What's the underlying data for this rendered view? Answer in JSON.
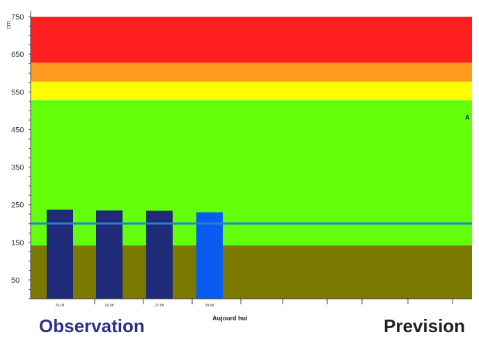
{
  "chart_data": {
    "type": "bar",
    "ylim": [
      0,
      750
    ],
    "yticks": [
      50,
      150,
      250,
      350,
      450,
      550,
      650,
      750
    ],
    "ylabel": "cm",
    "zones": [
      {
        "from": 0,
        "to": 142,
        "color": "#7a7a00"
      },
      {
        "from": 142,
        "to": 528,
        "color": "#63ff0a"
      },
      {
        "from": 528,
        "to": 577,
        "color": "#ffff00"
      },
      {
        "from": 577,
        "to": 628,
        "color": "#ff9a1f"
      },
      {
        "from": 628,
        "to": 750,
        "color": "#ff1f1f"
      }
    ],
    "threshold": {
      "value": 200,
      "color": "#2a7fc9"
    },
    "categories": [
      "25-08",
      "26-08",
      "27-08",
      "28-08"
    ],
    "values": [
      237,
      235,
      234,
      230
    ],
    "bar_colors": [
      "#1f2a78",
      "#1f2a78",
      "#1f2a78",
      "#0a5cf0"
    ],
    "today_label": "Aujourd hui",
    "side_label": "A"
  },
  "captions": {
    "observation": "Observation",
    "prevision": "Prevision"
  },
  "colors": {
    "observation": "#2e2f86",
    "prevision": "#222222",
    "axis": "#444444"
  }
}
